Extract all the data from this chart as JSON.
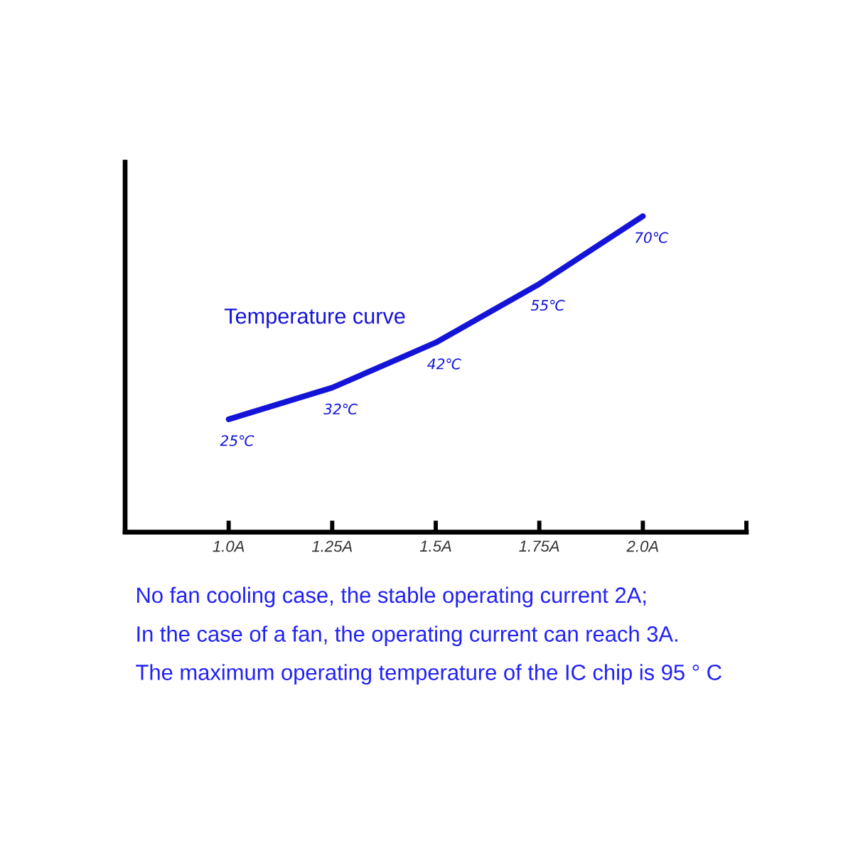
{
  "chart_data": {
    "type": "line",
    "categories": [
      "1.0A",
      "1.25A",
      "1.5A",
      "1.75A",
      "2.0A"
    ],
    "series": [
      {
        "name": "Temperature curve",
        "color": "#1414d8",
        "values": [
          25,
          32,
          42,
          55,
          70
        ],
        "value_labels": [
          "25℃",
          "32℃",
          "42℃",
          "55℃",
          "70℃"
        ]
      }
    ],
    "ylim": [
      0,
      82
    ],
    "tick_labels": "x",
    "marker": "none",
    "line_style": "solid",
    "annotations": [
      "No fan cooling case, the stable operating current 2A;",
      "In the case of a fan, the operating current can reach 3A.",
      "The maximum operating temperature of the IC chip is 95 ° C"
    ]
  }
}
